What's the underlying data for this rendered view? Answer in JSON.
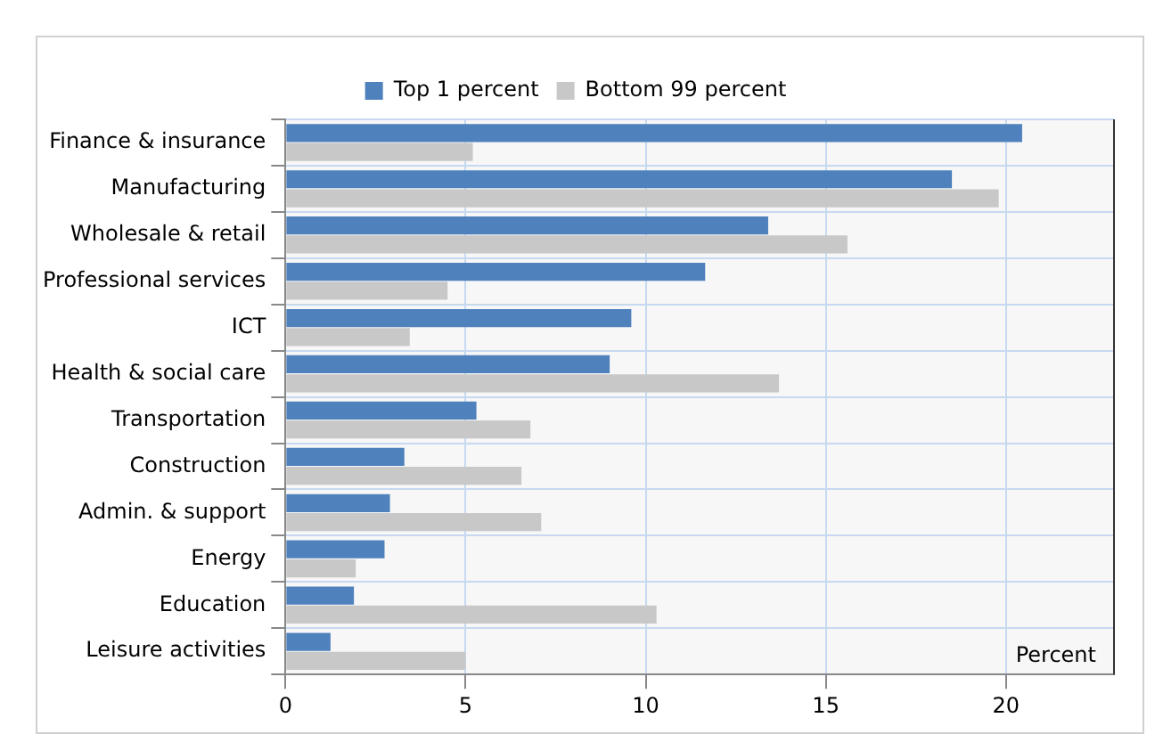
{
  "chart_data": {
    "type": "bar",
    "orientation": "horizontal",
    "categories": [
      "Finance & insurance",
      "Manufacturing",
      "Wholesale & retail",
      "Professional services",
      "ICT",
      "Health & social care",
      "Transportation",
      "Construction",
      "Admin. & support",
      "Energy",
      "Education",
      "Leisure activities"
    ],
    "series": [
      {
        "name": "Top 1 percent",
        "color": "#4f81bd",
        "values": [
          20.45,
          18.5,
          13.4,
          11.65,
          9.6,
          9.0,
          5.3,
          3.3,
          2.9,
          2.75,
          1.9,
          1.25
        ]
      },
      {
        "name": "Bottom 99 percent",
        "color": "#c8c8c8",
        "values": [
          5.2,
          19.8,
          15.6,
          4.5,
          3.45,
          13.7,
          6.8,
          6.55,
          7.1,
          1.95,
          10.3,
          5.0
        ]
      }
    ],
    "xlim": [
      0,
      23
    ],
    "xticks": [
      0,
      5,
      10,
      15,
      20
    ],
    "grid": true,
    "legend": "top",
    "annotations": [
      "Percent"
    ]
  }
}
